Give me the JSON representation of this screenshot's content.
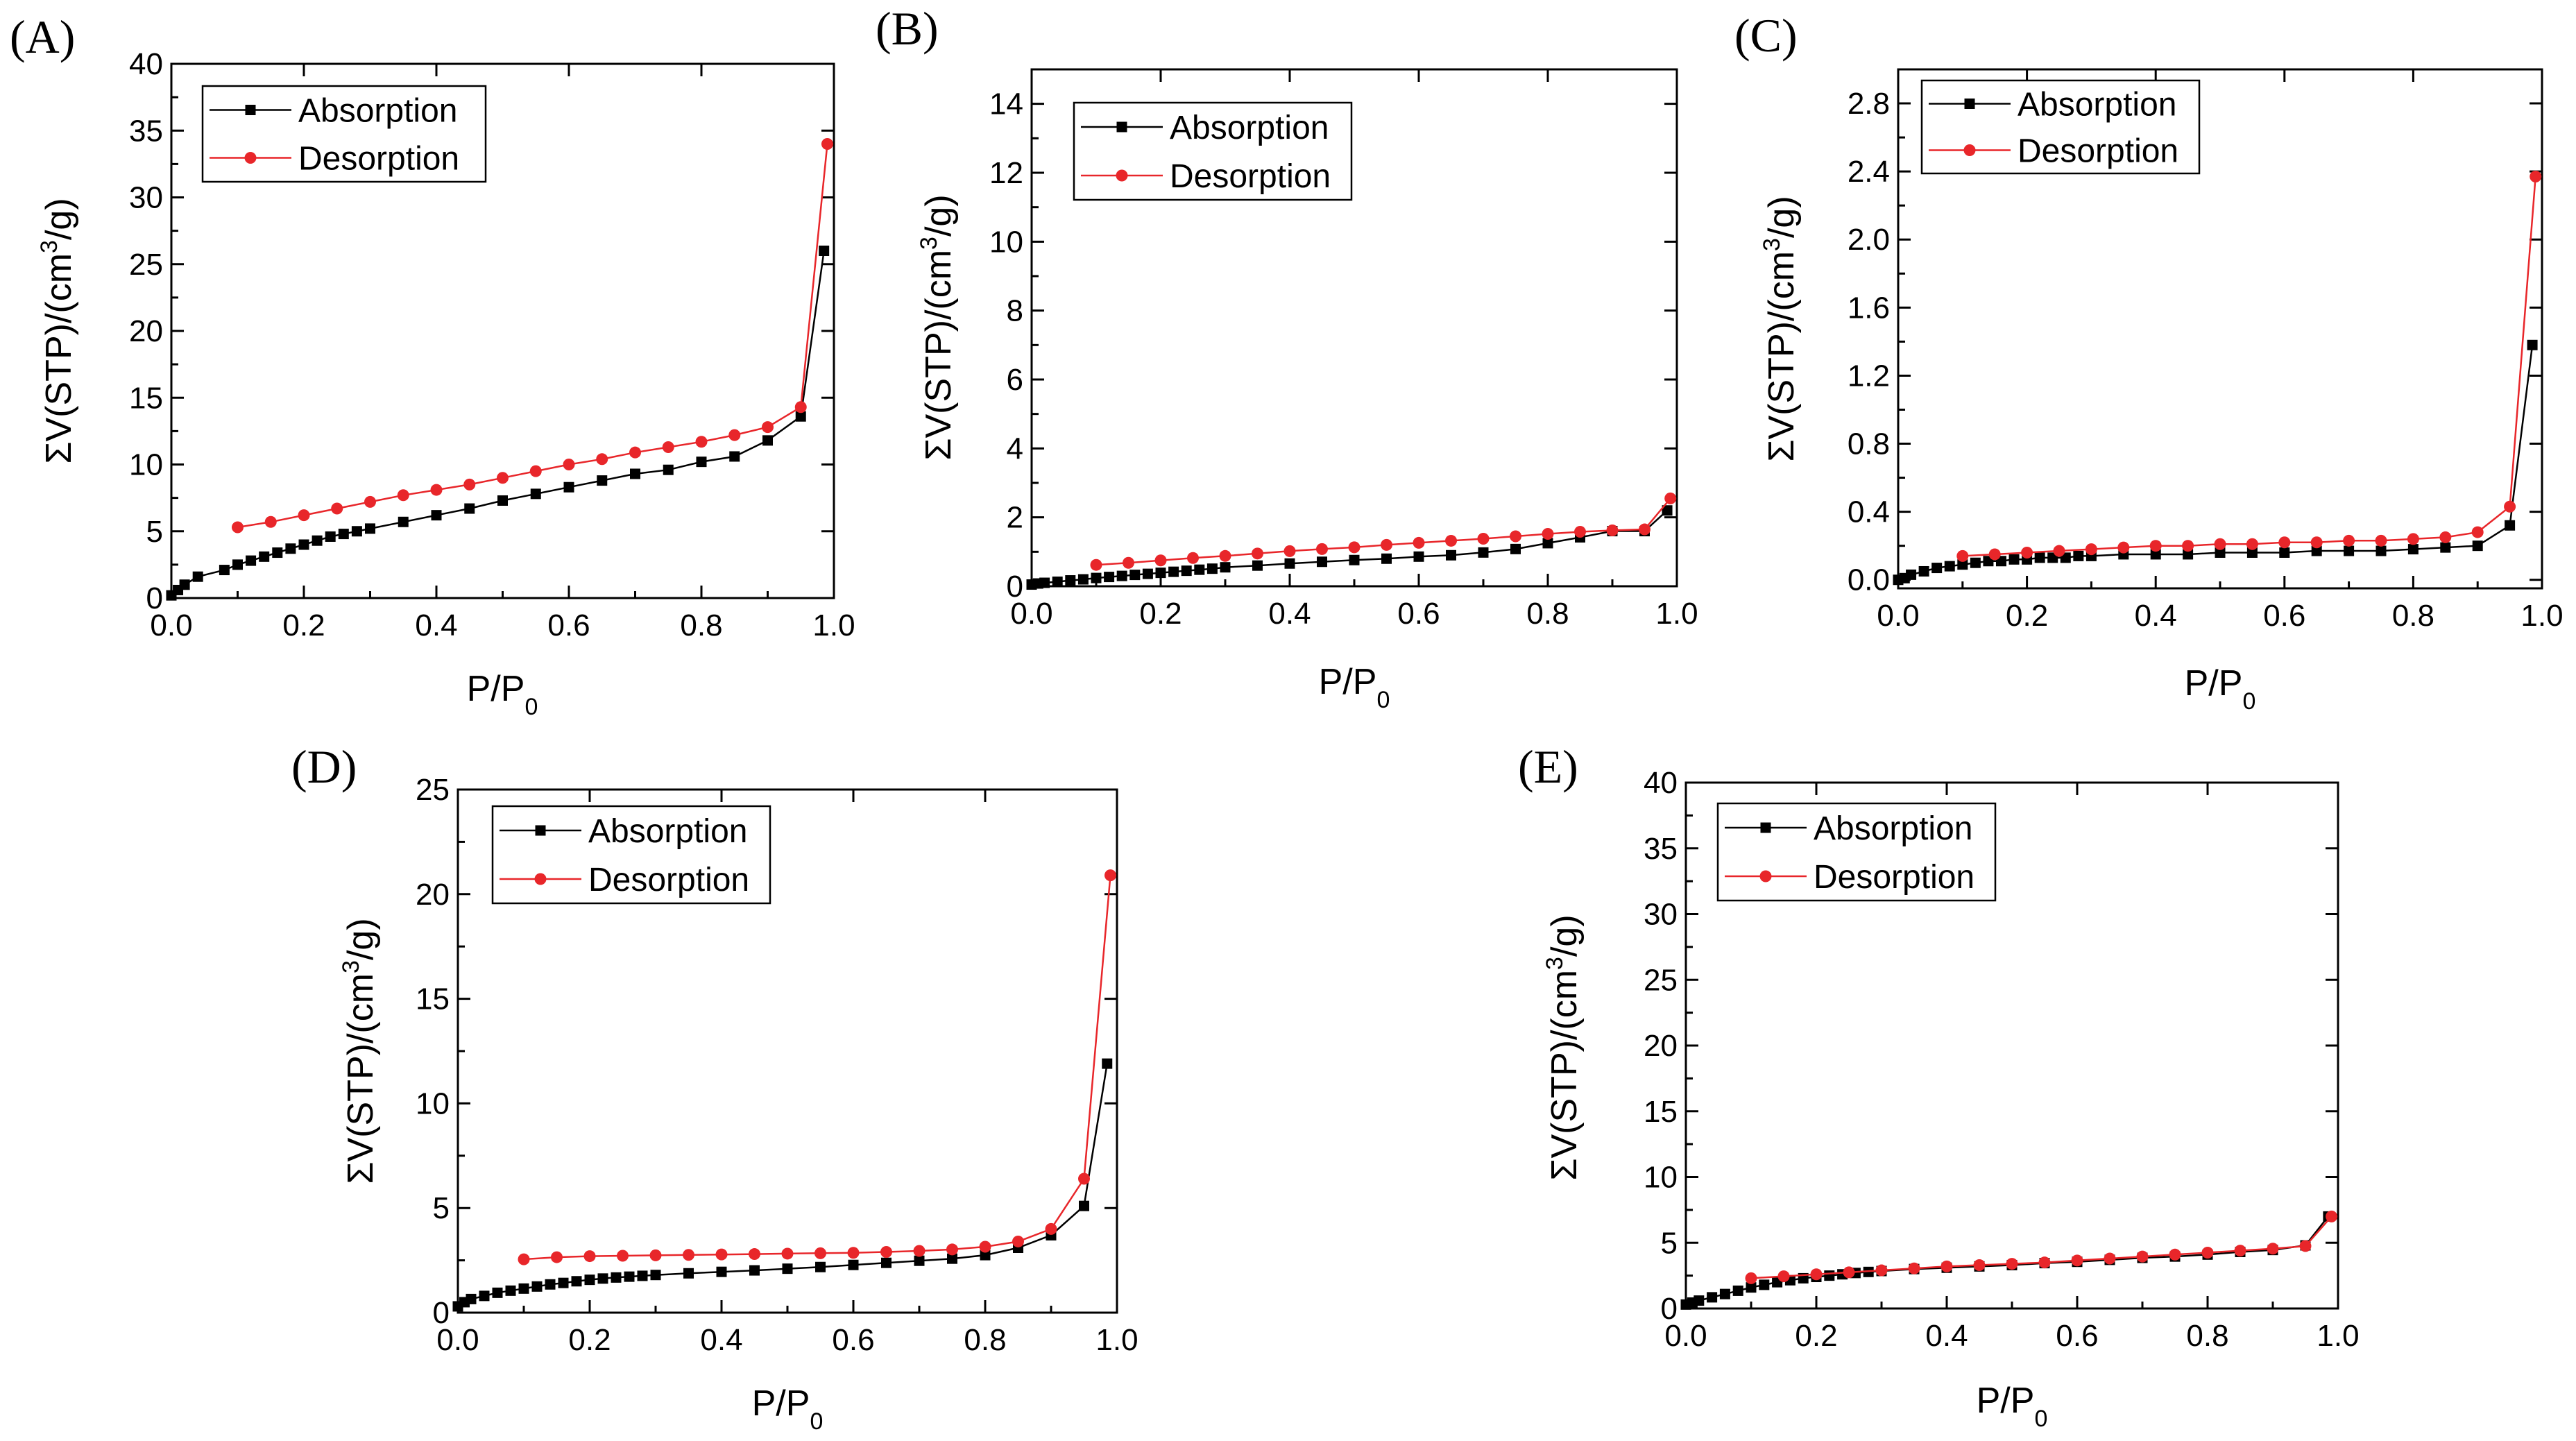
{
  "figure": {
    "legend_labels": [
      "Absorption",
      "Desorption"
    ]
  },
  "colors": {
    "absorption": "#000000",
    "desorption": "#e8262a",
    "axis": "#000000"
  },
  "chart_data": [
    {
      "panel": "A",
      "label": "(A)",
      "type": "line",
      "xlabel": "P/P",
      "xlabel_sub": "0",
      "ylabel": "ΣV(STP)/(cm",
      "ylabel_sup": "3",
      "ylabel_tail": "/g)",
      "xlim": [
        0,
        1.0
      ],
      "ylim": [
        0,
        40
      ],
      "xticks": [
        0,
        0.2,
        0.4,
        0.6,
        0.8,
        1.0
      ],
      "xtick_labels": [
        "0.0",
        "0.2",
        "0.4",
        "0.6",
        "0.8",
        "1.0"
      ],
      "yticks": [
        0,
        5,
        10,
        15,
        20,
        25,
        30,
        35,
        40
      ],
      "ytick_labels": [
        "0",
        "5",
        "10",
        "15",
        "20",
        "25",
        "30",
        "35",
        "40"
      ],
      "series": [
        {
          "name": "Absorption",
          "marker": "square",
          "x": [
            0.0,
            0.01,
            0.02,
            0.04,
            0.08,
            0.1,
            0.12,
            0.14,
            0.16,
            0.18,
            0.2,
            0.22,
            0.24,
            0.26,
            0.28,
            0.3,
            0.35,
            0.4,
            0.45,
            0.5,
            0.55,
            0.6,
            0.65,
            0.7,
            0.75,
            0.8,
            0.85,
            0.9,
            0.95,
            0.985
          ],
          "y": [
            0.2,
            0.6,
            1.0,
            1.6,
            2.1,
            2.5,
            2.8,
            3.1,
            3.4,
            3.7,
            4.0,
            4.3,
            4.6,
            4.8,
            5.0,
            5.2,
            5.7,
            6.2,
            6.7,
            7.3,
            7.8,
            8.3,
            8.8,
            9.3,
            9.6,
            10.2,
            10.6,
            11.8,
            13.6,
            26.0
          ]
        },
        {
          "name": "Desorption",
          "marker": "circle",
          "x": [
            0.1,
            0.15,
            0.2,
            0.25,
            0.3,
            0.35,
            0.4,
            0.45,
            0.5,
            0.55,
            0.6,
            0.65,
            0.7,
            0.75,
            0.8,
            0.85,
            0.9,
            0.95,
            0.99
          ],
          "y": [
            5.3,
            5.7,
            6.2,
            6.7,
            7.2,
            7.7,
            8.1,
            8.5,
            9.0,
            9.5,
            10.0,
            10.4,
            10.9,
            11.3,
            11.7,
            12.2,
            12.8,
            14.3,
            34.0
          ]
        }
      ]
    },
    {
      "panel": "B",
      "label": "(B)",
      "type": "line",
      "xlabel": "P/P",
      "xlabel_sub": "0",
      "ylabel": "ΣV(STP)/(cm",
      "ylabel_sup": "3",
      "ylabel_tail": "/g)",
      "xlim": [
        0,
        1.0
      ],
      "ylim": [
        0,
        15
      ],
      "xticks": [
        0,
        0.2,
        0.4,
        0.6,
        0.8,
        1.0
      ],
      "xtick_labels": [
        "0.0",
        "0.2",
        "0.4",
        "0.6",
        "0.8",
        "1.0"
      ],
      "yticks": [
        0,
        2,
        4,
        6,
        8,
        10,
        12,
        14
      ],
      "ytick_labels": [
        "0",
        "2",
        "4",
        "6",
        "8",
        "10",
        "12",
        "14"
      ],
      "series": [
        {
          "name": "Absorption",
          "marker": "square",
          "x": [
            0.0,
            0.01,
            0.02,
            0.04,
            0.06,
            0.08,
            0.1,
            0.12,
            0.14,
            0.16,
            0.18,
            0.2,
            0.22,
            0.24,
            0.26,
            0.28,
            0.3,
            0.35,
            0.4,
            0.45,
            0.5,
            0.55,
            0.6,
            0.65,
            0.7,
            0.75,
            0.8,
            0.85,
            0.9,
            0.95,
            0.985
          ],
          "y": [
            0.05,
            0.08,
            0.1,
            0.13,
            0.17,
            0.2,
            0.24,
            0.27,
            0.3,
            0.33,
            0.36,
            0.39,
            0.42,
            0.45,
            0.48,
            0.51,
            0.55,
            0.6,
            0.66,
            0.71,
            0.76,
            0.8,
            0.86,
            0.9,
            0.98,
            1.08,
            1.25,
            1.42,
            1.6,
            1.6,
            2.2
          ]
        },
        {
          "name": "Desorption",
          "marker": "circle",
          "x": [
            0.1,
            0.15,
            0.2,
            0.25,
            0.3,
            0.35,
            0.4,
            0.45,
            0.5,
            0.55,
            0.6,
            0.65,
            0.7,
            0.75,
            0.8,
            0.85,
            0.9,
            0.95,
            0.99
          ],
          "y": [
            0.62,
            0.68,
            0.75,
            0.82,
            0.88,
            0.95,
            1.02,
            1.08,
            1.13,
            1.2,
            1.26,
            1.32,
            1.38,
            1.45,
            1.52,
            1.58,
            1.62,
            1.65,
            2.55
          ]
        }
      ]
    },
    {
      "panel": "C",
      "label": "(C)",
      "type": "line",
      "xlabel": "P/P",
      "xlabel_sub": "0",
      "ylabel": "ΣV(STP)/(cm",
      "ylabel_sup": "3",
      "ylabel_tail": "/g)",
      "xlim": [
        0,
        1.0
      ],
      "ylim": [
        -0.05,
        3.0
      ],
      "xticks": [
        0,
        0.2,
        0.4,
        0.6,
        0.8,
        1.0
      ],
      "xtick_labels": [
        "0.0",
        "0.2",
        "0.4",
        "0.6",
        "0.8",
        "1.0"
      ],
      "yticks": [
        0,
        0.4,
        0.8,
        1.2,
        1.6,
        2.0,
        2.4,
        2.8
      ],
      "ytick_labels": [
        "0.0",
        "0.4",
        "0.8",
        "1.2",
        "1.6",
        "2.0",
        "2.4",
        "2.8"
      ],
      "series": [
        {
          "name": "Absorption",
          "marker": "square",
          "x": [
            0.0,
            0.01,
            0.02,
            0.04,
            0.06,
            0.08,
            0.1,
            0.12,
            0.14,
            0.16,
            0.18,
            0.2,
            0.22,
            0.24,
            0.26,
            0.28,
            0.3,
            0.35,
            0.4,
            0.45,
            0.5,
            0.55,
            0.6,
            0.65,
            0.7,
            0.75,
            0.8,
            0.85,
            0.9,
            0.95,
            0.985
          ],
          "y": [
            0.0,
            0.01,
            0.03,
            0.05,
            0.07,
            0.08,
            0.09,
            0.1,
            0.11,
            0.11,
            0.12,
            0.12,
            0.13,
            0.13,
            0.13,
            0.14,
            0.14,
            0.15,
            0.15,
            0.15,
            0.16,
            0.16,
            0.16,
            0.17,
            0.17,
            0.17,
            0.18,
            0.19,
            0.2,
            0.32,
            1.38
          ]
        },
        {
          "name": "Desorption",
          "marker": "circle",
          "x": [
            0.1,
            0.15,
            0.2,
            0.25,
            0.3,
            0.35,
            0.4,
            0.45,
            0.5,
            0.55,
            0.6,
            0.65,
            0.7,
            0.75,
            0.8,
            0.85,
            0.9,
            0.95,
            0.99
          ],
          "y": [
            0.14,
            0.15,
            0.16,
            0.17,
            0.18,
            0.19,
            0.2,
            0.2,
            0.21,
            0.21,
            0.22,
            0.22,
            0.23,
            0.23,
            0.24,
            0.25,
            0.28,
            0.43,
            2.37
          ]
        }
      ]
    },
    {
      "panel": "D",
      "label": "(D)",
      "type": "line",
      "xlabel": "P/P",
      "xlabel_sub": "0",
      "ylabel": "ΣV(STP)/(cm",
      "ylabel_sup": "3",
      "ylabel_tail": "/g)",
      "xlim": [
        0,
        1.0
      ],
      "ylim": [
        0,
        25
      ],
      "xticks": [
        0,
        0.2,
        0.4,
        0.6,
        0.8,
        1.0
      ],
      "xtick_labels": [
        "0.0",
        "0.2",
        "0.4",
        "0.6",
        "0.8",
        "1.0"
      ],
      "yticks": [
        0,
        5,
        10,
        15,
        20,
        25
      ],
      "ytick_labels": [
        "0",
        "5",
        "10",
        "15",
        "20",
        "25"
      ],
      "series": [
        {
          "name": "Absorption",
          "marker": "square",
          "x": [
            0.0,
            0.01,
            0.02,
            0.04,
            0.06,
            0.08,
            0.1,
            0.12,
            0.14,
            0.16,
            0.18,
            0.2,
            0.22,
            0.24,
            0.26,
            0.28,
            0.3,
            0.35,
            0.4,
            0.45,
            0.5,
            0.55,
            0.6,
            0.65,
            0.7,
            0.75,
            0.8,
            0.85,
            0.9,
            0.95,
            0.985
          ],
          "y": [
            0.3,
            0.5,
            0.65,
            0.8,
            0.95,
            1.05,
            1.15,
            1.25,
            1.35,
            1.42,
            1.5,
            1.57,
            1.63,
            1.68,
            1.72,
            1.76,
            1.8,
            1.88,
            1.95,
            2.02,
            2.1,
            2.18,
            2.28,
            2.38,
            2.48,
            2.58,
            2.75,
            3.1,
            3.7,
            5.1,
            11.9
          ]
        },
        {
          "name": "Desorption",
          "marker": "circle",
          "x": [
            0.1,
            0.15,
            0.2,
            0.25,
            0.3,
            0.35,
            0.4,
            0.45,
            0.5,
            0.55,
            0.6,
            0.65,
            0.7,
            0.75,
            0.8,
            0.85,
            0.9,
            0.95,
            0.99
          ],
          "y": [
            2.55,
            2.65,
            2.7,
            2.72,
            2.74,
            2.76,
            2.78,
            2.8,
            2.82,
            2.84,
            2.86,
            2.9,
            2.95,
            3.02,
            3.15,
            3.4,
            4.0,
            6.4,
            20.9
          ]
        }
      ]
    },
    {
      "panel": "E",
      "label": "(E)",
      "type": "line",
      "xlabel": "P/P",
      "xlabel_sub": "0",
      "ylabel": "ΣV(STP)/(cm",
      "ylabel_sup": "3",
      "ylabel_tail": "/g)",
      "xlim": [
        0,
        1.0
      ],
      "ylim": [
        0,
        40
      ],
      "xticks": [
        0,
        0.2,
        0.4,
        0.6,
        0.8,
        1.0
      ],
      "xtick_labels": [
        "0.0",
        "0.2",
        "0.4",
        "0.6",
        "0.8",
        "1.0"
      ],
      "yticks": [
        0,
        5,
        10,
        15,
        20,
        25,
        30,
        35,
        40
      ],
      "ytick_labels": [
        "0",
        "5",
        "10",
        "15",
        "20",
        "25",
        "30",
        "35",
        "40"
      ],
      "series": [
        {
          "name": "Absorption",
          "marker": "square",
          "x": [
            0.0,
            0.01,
            0.02,
            0.04,
            0.06,
            0.08,
            0.1,
            0.12,
            0.14,
            0.16,
            0.18,
            0.2,
            0.22,
            0.24,
            0.26,
            0.28,
            0.3,
            0.35,
            0.4,
            0.45,
            0.5,
            0.55,
            0.6,
            0.65,
            0.7,
            0.75,
            0.8,
            0.85,
            0.9,
            0.95,
            0.985
          ],
          "y": [
            0.3,
            0.45,
            0.6,
            0.85,
            1.1,
            1.35,
            1.6,
            1.8,
            2.0,
            2.15,
            2.3,
            2.4,
            2.5,
            2.6,
            2.7,
            2.78,
            2.85,
            3.0,
            3.1,
            3.2,
            3.3,
            3.45,
            3.55,
            3.7,
            3.85,
            3.95,
            4.1,
            4.3,
            4.45,
            4.8,
            7.0
          ]
        },
        {
          "name": "Desorption",
          "marker": "circle",
          "x": [
            0.1,
            0.15,
            0.2,
            0.25,
            0.3,
            0.35,
            0.4,
            0.45,
            0.5,
            0.55,
            0.6,
            0.65,
            0.7,
            0.75,
            0.8,
            0.85,
            0.9,
            0.95,
            0.99
          ],
          "y": [
            2.3,
            2.45,
            2.6,
            2.75,
            2.9,
            3.05,
            3.2,
            3.3,
            3.4,
            3.5,
            3.65,
            3.8,
            3.95,
            4.1,
            4.25,
            4.4,
            4.55,
            4.75,
            7.0
          ]
        }
      ]
    }
  ]
}
